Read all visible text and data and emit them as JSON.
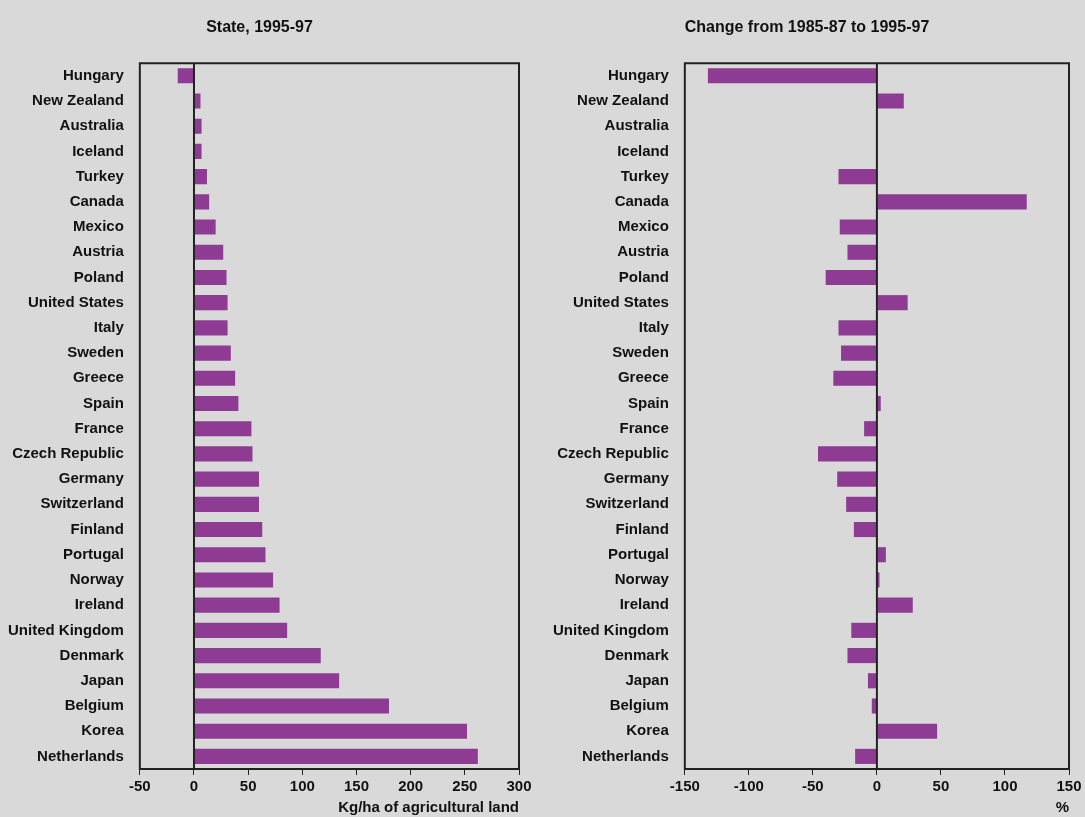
{
  "chart_data": [
    {
      "type": "bar",
      "orientation": "horizontal",
      "title": "State, 1995-97",
      "xlabel": "Kg/ha of agricultural land",
      "color": "#8e3b94",
      "categories": [
        "Hungary",
        "New Zealand",
        "Australia",
        "Iceland",
        "Turkey",
        "Canada",
        "Mexico",
        "Austria",
        "Poland",
        "United States",
        "Italy",
        "Sweden",
        "Greece",
        "Spain",
        "France",
        "Czech Republic",
        "Germany",
        "Switzerland",
        "Finland",
        "Portugal",
        "Norway",
        "Ireland",
        "United Kingdom",
        "Denmark",
        "Japan",
        "Belgium",
        "Korea",
        "Netherlands"
      ],
      "values": [
        -15,
        6,
        7,
        7,
        12,
        14,
        20,
        27,
        30,
        31,
        31,
        34,
        38,
        41,
        53,
        54,
        60,
        60,
        63,
        66,
        73,
        79,
        86,
        117,
        134,
        180,
        252,
        262
      ],
      "xlim": [
        -50,
        300
      ],
      "xticks": [
        -50,
        0,
        50,
        100,
        150,
        200,
        250,
        300
      ]
    },
    {
      "type": "bar",
      "orientation": "horizontal",
      "title": "Change from 1985-87 to 1995-97",
      "xlabel": "%",
      "color": "#8e3b94",
      "categories": [
        "Hungary",
        "New Zealand",
        "Australia",
        "Iceland",
        "Turkey",
        "Canada",
        "Mexico",
        "Austria",
        "Poland",
        "United States",
        "Italy",
        "Sweden",
        "Greece",
        "Spain",
        "France",
        "Czech Republic",
        "Germany",
        "Switzerland",
        "Finland",
        "Portugal",
        "Norway",
        "Ireland",
        "United Kingdom",
        "Denmark",
        "Japan",
        "Belgium",
        "Korea",
        "Netherlands"
      ],
      "values": [
        -132,
        21,
        null,
        null,
        -30,
        117,
        -29,
        -23,
        -40,
        24,
        -30,
        -28,
        -34,
        3,
        -10,
        -46,
        -31,
        -24,
        -18,
        7,
        2,
        28,
        -20,
        -23,
        -7,
        -4,
        47,
        -17
      ],
      "xlim": [
        -150,
        150
      ],
      "xticks": [
        -150,
        -100,
        -50,
        0,
        50,
        100,
        150
      ]
    }
  ]
}
